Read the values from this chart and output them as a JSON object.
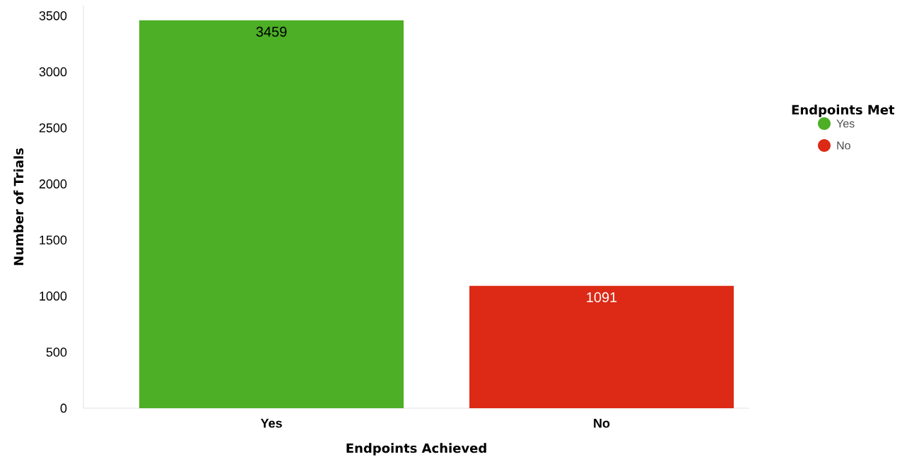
{
  "chart_data": {
    "type": "bar",
    "xlabel": "Endpoints Achieved",
    "ylabel": "Number of Trials",
    "legend_title": "Endpoints Met",
    "categories": [
      "Yes",
      "No"
    ],
    "series": [
      {
        "name": "Yes",
        "color": "#4caf26",
        "values": [
          3459,
          null
        ]
      },
      {
        "name": "No",
        "color": "#dc2a16",
        "values": [
          null,
          1091
        ]
      }
    ],
    "ylim": [
      0,
      3590
    ],
    "yticks": [
      0,
      500,
      1000,
      1500,
      2000,
      2500,
      3000,
      3500
    ],
    "data_labels": true,
    "legend": "right",
    "grid": false
  }
}
